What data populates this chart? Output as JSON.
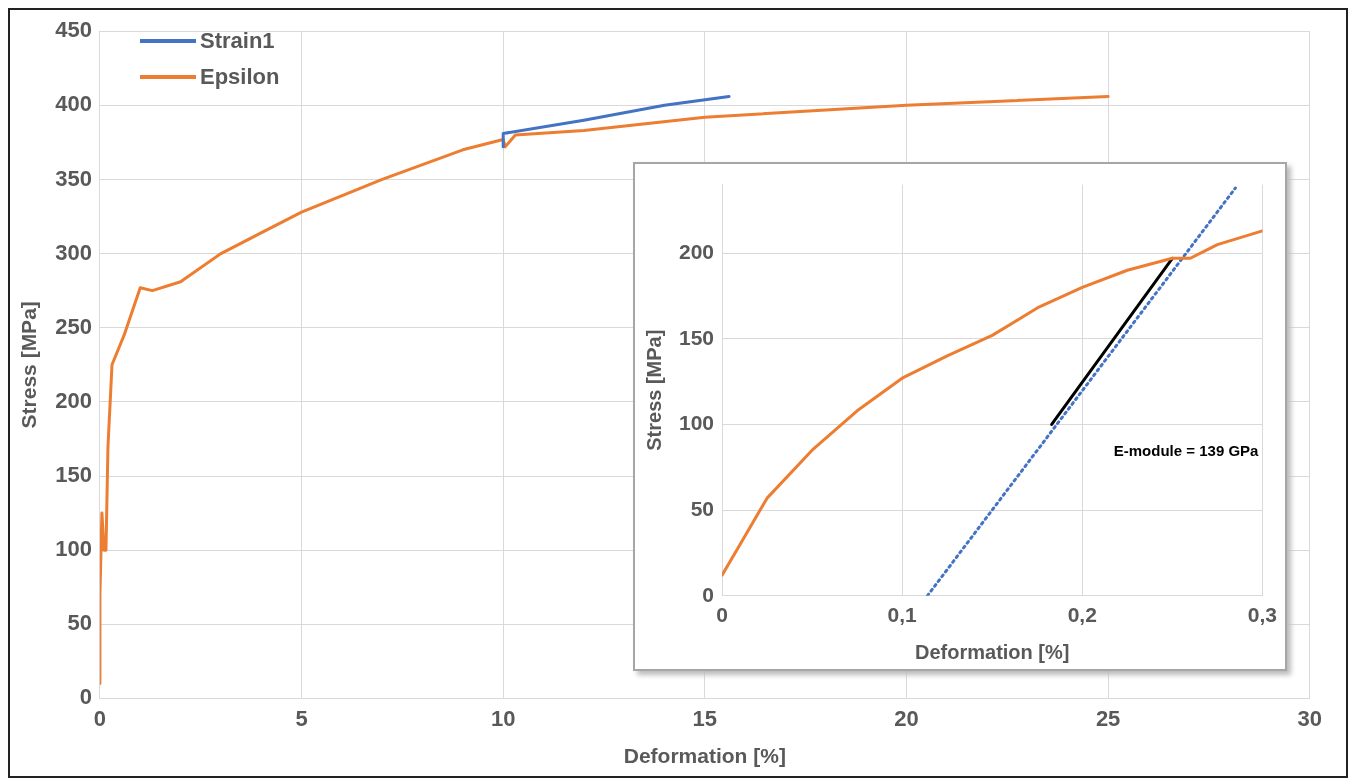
{
  "chart_data": [
    {
      "type": "line",
      "xlabel": "Deformation [%]",
      "ylabel": "Stress [MPa]",
      "xlim": [
        0,
        30
      ],
      "xticks": [
        0,
        5,
        10,
        15,
        20,
        25,
        30
      ],
      "ylim": [
        0,
        450
      ],
      "yticks": [
        0,
        50,
        100,
        150,
        200,
        250,
        300,
        350,
        400,
        450
      ],
      "grid": true,
      "legend": "top left",
      "marker": "none",
      "series": [
        {
          "name": "Strain1",
          "color": "#4472c4",
          "x": [
            10,
            10,
            12,
            14,
            15.6
          ],
          "values": [
            372,
            381,
            390,
            400,
            406
          ]
        },
        {
          "name": "Epsilon",
          "color": "#ed7d31",
          "x": [
            0,
            0,
            0.05,
            0.1,
            0.15,
            0.2,
            0.3,
            0.6,
            1,
            1.3,
            2,
            3,
            5,
            7,
            9,
            10,
            10.05,
            10.3,
            12,
            15,
            20,
            25
          ],
          "values": [
            10,
            70,
            125,
            100,
            100,
            170,
            225,
            245,
            277,
            275,
            281,
            300,
            328,
            350,
            370,
            377,
            372,
            380,
            383,
            392,
            400,
            406
          ]
        }
      ]
    },
    {
      "type": "line",
      "xlabel": "Deformation [%]",
      "ylabel": "Stress [MPa]",
      "xlim": [
        0,
        0.3
      ],
      "xticks": [
        0,
        {
          "value": 0.1,
          "label": "0,1"
        },
        {
          "value": 0.2,
          "label": "0,2"
        },
        {
          "value": 0.3,
          "label": "0,3"
        }
      ],
      "ylim": [
        0,
        240
      ],
      "yticks": [
        0,
        50,
        100,
        150,
        200
      ],
      "grid": true,
      "marker": "none",
      "annotations": [
        "E-module = 139 GPa"
      ],
      "series": [
        {
          "color": "#ed7d31",
          "x": [
            0,
            0.01,
            0.025,
            0.05,
            0.075,
            0.1,
            0.125,
            0.15,
            0.175,
            0.2,
            0.225,
            0.25,
            0.26,
            0.275,
            0.3
          ],
          "values": [
            12,
            30,
            57,
            85,
            108,
            127,
            140,
            152,
            168,
            180,
            190,
            197,
            197,
            205,
            213
          ]
        },
        {
          "color": "#000000",
          "x": [
            0.183,
            0.25
          ],
          "values": [
            100,
            197
          ]
        },
        {
          "type": "line",
          "color": "#4472c4",
          "line_style": "dotted",
          "x": [
            0.114,
            0.285
          ],
          "values": [
            0,
            238
          ]
        }
      ]
    }
  ]
}
